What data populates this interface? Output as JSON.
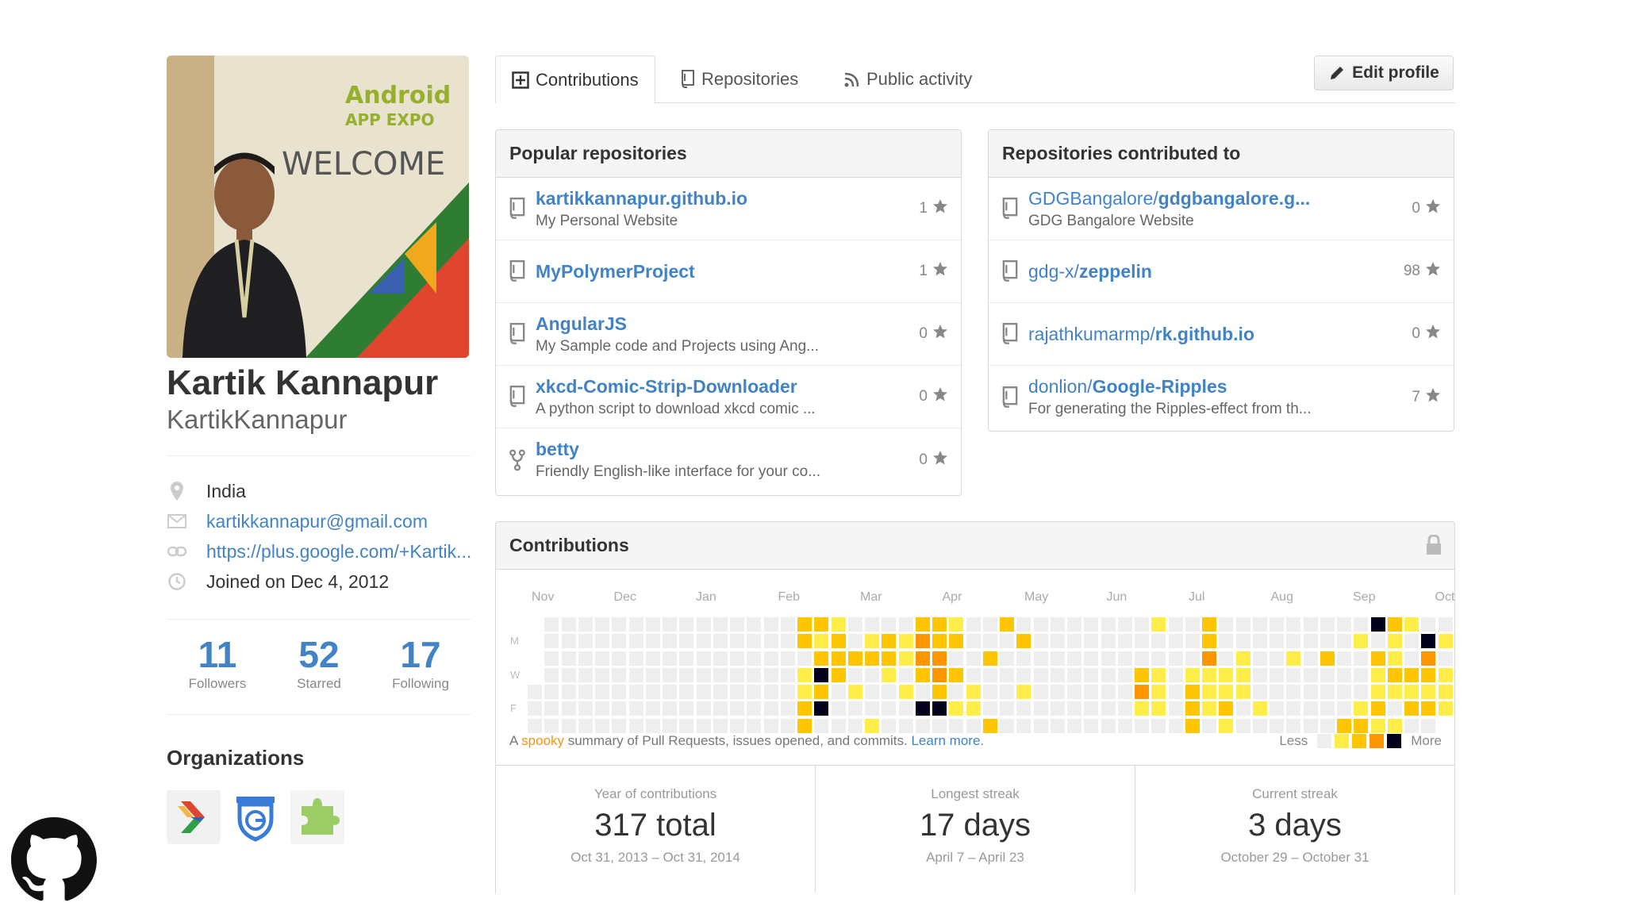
{
  "profile": {
    "full_name": "Kartik Kannapur",
    "username": "KartikKannapur",
    "avatar_sign": [
      "Android",
      "APP EXPO"
    ],
    "avatar_welcome": "WELCOME",
    "location": "India",
    "email": "kartikkannapur@gmail.com",
    "website": "https://plus.google.com/+Kartik...",
    "joined": "Joined on Dec 4, 2012"
  },
  "stats": [
    {
      "value": "11",
      "label": "Followers"
    },
    {
      "value": "52",
      "label": "Starred"
    },
    {
      "value": "17",
      "label": "Following"
    }
  ],
  "organizations": {
    "title": "Organizations"
  },
  "tabs": {
    "contributions": "Contributions",
    "repositories": "Repositories",
    "public_activity": "Public activity",
    "active": "contributions"
  },
  "edit_profile_label": "Edit profile",
  "popular_repos": {
    "title": "Popular repositories",
    "items": [
      {
        "owner": "",
        "name": "kartikkannapur.github.io",
        "desc": "My Personal Website",
        "stars": "1",
        "icon": "repo-icon"
      },
      {
        "owner": "",
        "name": "MyPolymerProject",
        "desc": "",
        "stars": "1",
        "icon": "repo-icon"
      },
      {
        "owner": "",
        "name": "AngularJS",
        "desc": "My Sample code and Projects using Ang...",
        "stars": "0",
        "icon": "repo-icon"
      },
      {
        "owner": "",
        "name": "xkcd-Comic-Strip-Downloader",
        "desc": "A python script to download xkcd comic ...",
        "stars": "0",
        "icon": "repo-icon"
      },
      {
        "owner": "",
        "name": "betty",
        "desc": "Friendly English-like interface for your co...",
        "stars": "0",
        "icon": "fork-icon"
      }
    ]
  },
  "contributed_repos": {
    "title": "Repositories contributed to",
    "items": [
      {
        "owner": "GDGBangalore/",
        "name": "gdgbangalore.g...",
        "desc": "GDG Bangalore Website",
        "stars": "0",
        "icon": "repo-icon"
      },
      {
        "owner": "gdg-x/",
        "name": "zeppelin",
        "desc": "",
        "stars": "98",
        "icon": "repo-icon"
      },
      {
        "owner": "rajathkumarmp/",
        "name": "rk.github.io",
        "desc": "",
        "stars": "0",
        "icon": "repo-icon"
      },
      {
        "owner": "donlion/",
        "name": "Google-Ripples",
        "desc": "For generating the Ripples-effect from th...",
        "stars": "7",
        "icon": "repo-icon"
      }
    ]
  },
  "contributions": {
    "title": "Contributions",
    "months": [
      "Nov",
      "Dec",
      "Jan",
      "Feb",
      "Mar",
      "Apr",
      "May",
      "Jun",
      "Jul",
      "Aug",
      "Sep",
      "Oct"
    ],
    "day_labels": [
      "M",
      "W",
      "F"
    ],
    "legend_prefix": "A ",
    "legend_spooky": "spooky",
    "legend_suffix": " summary of Pull Requests, issues opened, and commits. ",
    "learn_more": "Learn more.",
    "less": "Less",
    "more": "More",
    "colors": [
      "#eeeeee",
      "#ffee4a",
      "#ffc501",
      "#fe9600",
      "#03001c"
    ],
    "activity": [
      [
        16,
        0,
        2
      ],
      [
        16,
        1,
        2
      ],
      [
        16,
        3,
        1
      ],
      [
        16,
        4,
        1
      ],
      [
        16,
        5,
        2
      ],
      [
        16,
        6,
        2
      ],
      [
        17,
        0,
        2
      ],
      [
        17,
        1,
        1
      ],
      [
        17,
        2,
        2
      ],
      [
        17,
        3,
        4
      ],
      [
        17,
        4,
        2
      ],
      [
        17,
        5,
        4
      ],
      [
        18,
        0,
        1
      ],
      [
        18,
        1,
        2
      ],
      [
        18,
        2,
        2
      ],
      [
        18,
        3,
        2
      ],
      [
        19,
        2,
        2
      ],
      [
        19,
        4,
        1
      ],
      [
        20,
        1,
        1
      ],
      [
        20,
        2,
        2
      ],
      [
        20,
        6,
        1
      ],
      [
        21,
        1,
        2
      ],
      [
        21,
        2,
        2
      ],
      [
        21,
        3,
        1
      ],
      [
        22,
        1,
        1
      ],
      [
        22,
        2,
        1
      ],
      [
        22,
        4,
        1
      ],
      [
        23,
        0,
        2
      ],
      [
        23,
        1,
        3
      ],
      [
        23,
        2,
        3
      ],
      [
        23,
        3,
        2
      ],
      [
        23,
        5,
        4
      ],
      [
        24,
        0,
        2
      ],
      [
        24,
        1,
        2
      ],
      [
        24,
        2,
        3
      ],
      [
        24,
        3,
        3
      ],
      [
        24,
        4,
        2
      ],
      [
        24,
        5,
        4
      ],
      [
        25,
        0,
        1
      ],
      [
        25,
        1,
        2
      ],
      [
        25,
        3,
        2
      ],
      [
        25,
        5,
        1
      ],
      [
        26,
        4,
        1
      ],
      [
        26,
        5,
        1
      ],
      [
        27,
        2,
        2
      ],
      [
        27,
        6,
        2
      ],
      [
        28,
        0,
        2
      ],
      [
        29,
        1,
        2
      ],
      [
        29,
        4,
        1
      ],
      [
        36,
        3,
        2
      ],
      [
        36,
        4,
        3
      ],
      [
        36,
        5,
        1
      ],
      [
        37,
        0,
        1
      ],
      [
        37,
        3,
        1
      ],
      [
        37,
        4,
        1
      ],
      [
        37,
        5,
        1
      ],
      [
        39,
        3,
        1
      ],
      [
        39,
        4,
        2
      ],
      [
        39,
        5,
        2
      ],
      [
        39,
        6,
        2
      ],
      [
        40,
        0,
        2
      ],
      [
        40,
        1,
        2
      ],
      [
        40,
        2,
        3
      ],
      [
        40,
        3,
        1
      ],
      [
        40,
        4,
        1
      ],
      [
        40,
        5,
        1
      ],
      [
        41,
        3,
        1
      ],
      [
        41,
        4,
        1
      ],
      [
        41,
        5,
        2
      ],
      [
        41,
        6,
        1
      ],
      [
        42,
        2,
        1
      ],
      [
        42,
        3,
        1
      ],
      [
        42,
        4,
        1
      ],
      [
        43,
        5,
        1
      ],
      [
        45,
        2,
        1
      ],
      [
        47,
        2,
        2
      ],
      [
        48,
        6,
        2
      ],
      [
        49,
        1,
        1
      ],
      [
        49,
        5,
        1
      ],
      [
        49,
        6,
        2
      ],
      [
        50,
        0,
        4
      ],
      [
        50,
        2,
        2
      ],
      [
        50,
        3,
        1
      ],
      [
        50,
        4,
        1
      ],
      [
        50,
        5,
        2
      ],
      [
        50,
        6,
        1
      ],
      [
        51,
        0,
        2
      ],
      [
        51,
        1,
        1
      ],
      [
        51,
        2,
        1
      ],
      [
        51,
        3,
        2
      ],
      [
        51,
        4,
        1
      ],
      [
        51,
        6,
        1
      ],
      [
        52,
        0,
        1
      ],
      [
        52,
        3,
        2
      ],
      [
        52,
        4,
        1
      ],
      [
        52,
        5,
        2
      ],
      [
        53,
        1,
        4
      ],
      [
        53,
        2,
        3
      ],
      [
        53,
        3,
        2
      ],
      [
        53,
        4,
        1
      ],
      [
        53,
        5,
        2
      ],
      [
        54,
        1,
        1
      ],
      [
        54,
        3,
        1
      ],
      [
        54,
        4,
        1
      ],
      [
        54,
        5,
        1
      ]
    ]
  },
  "summary": [
    {
      "label": "Year of contributions",
      "value": "317 total",
      "dates": "Oct 31, 2013 – Oct 31, 2014"
    },
    {
      "label": "Longest streak",
      "value": "17 days",
      "dates": "April 7 – April 23"
    },
    {
      "label": "Current streak",
      "value": "3 days",
      "dates": "October 29 – October 31"
    }
  ],
  "icons": {
    "location": "location-pin-icon",
    "email": "mail-icon",
    "website": "link-icon",
    "joined": "clock-icon",
    "star": "star-icon",
    "lock": "lock-icon",
    "github": "github-octocat-icon"
  }
}
